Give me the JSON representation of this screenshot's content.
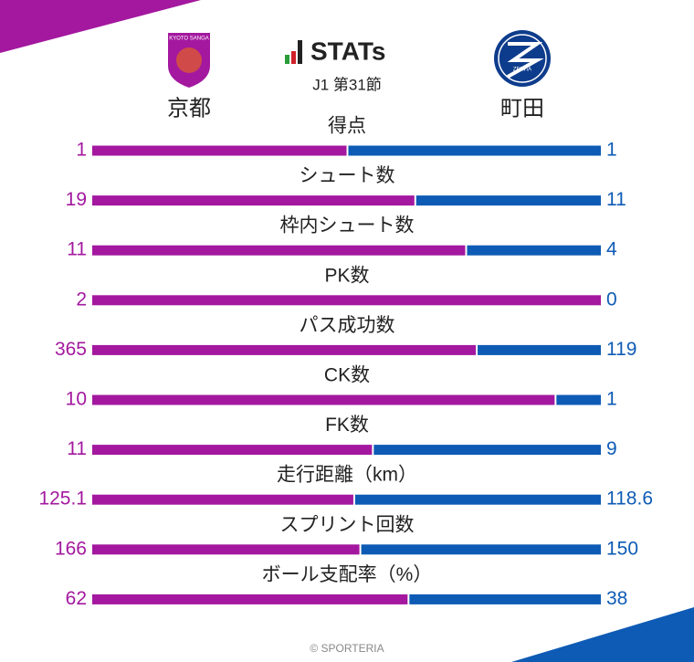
{
  "header": {
    "title": "STATs",
    "subtitle": "J1 第31節",
    "home": {
      "name": "京都",
      "logo_text": "KYOTO SANGA",
      "color": "#a3189f"
    },
    "away": {
      "name": "町田",
      "logo_text": "ZELVIA",
      "color": "#0e5bb5"
    }
  },
  "stats": [
    {
      "label": "得点",
      "home": 1,
      "away": 1
    },
    {
      "label": "シュート数",
      "home": 19,
      "away": 11
    },
    {
      "label": "枠内シュート数",
      "home": 11,
      "away": 4
    },
    {
      "label": "PK数",
      "home": 2,
      "away": 0
    },
    {
      "label": "パス成功数",
      "home": 365,
      "away": 119
    },
    {
      "label": "CK数",
      "home": 10,
      "away": 1
    },
    {
      "label": "FK数",
      "home": 11,
      "away": 9
    },
    {
      "label": "走行距離（km）",
      "home": 125.1,
      "away": 118.6
    },
    {
      "label": "スプリント回数",
      "home": 166,
      "away": 150
    },
    {
      "label": "ボール支配率（%）",
      "home": 62,
      "away": 38
    }
  ],
  "footer": "© SPORTERIA"
}
